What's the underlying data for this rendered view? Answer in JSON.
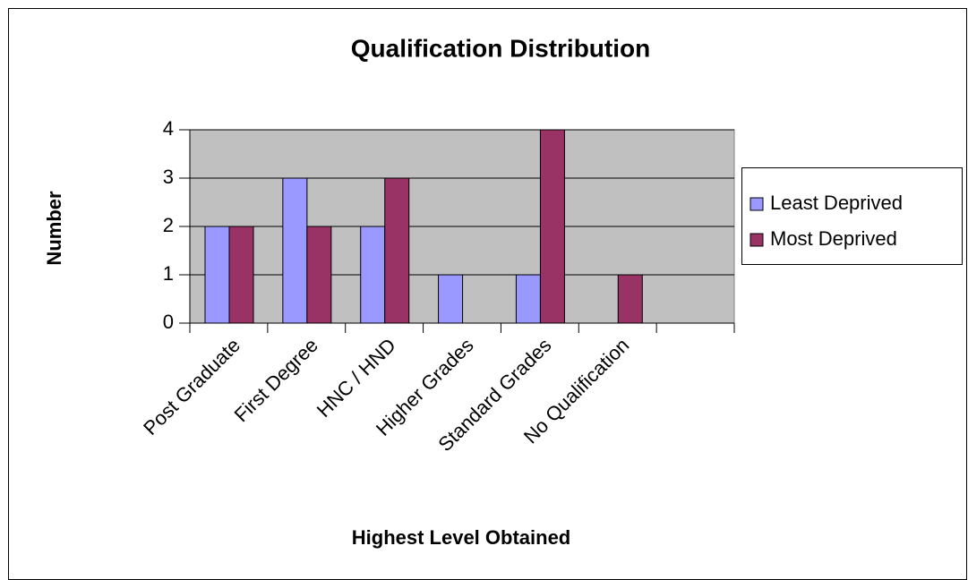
{
  "chart_data": {
    "type": "bar",
    "title": "Qualification Distribution",
    "x_label": "Highest Level Obtained",
    "y_label": "Number",
    "categories": [
      "Post Graduate",
      "First Degree",
      "HNC / HND",
      "Higher Grades",
      "Standard Grades",
      "No Qualification",
      null
    ],
    "series": [
      {
        "name": "Least Deprived",
        "color": "#9999ff",
        "values": [
          2,
          3,
          2,
          1,
          1,
          0,
          null
        ]
      },
      {
        "name": "Most Deprived",
        "color": "#993366",
        "values": [
          2,
          2,
          3,
          0,
          4,
          1,
          null
        ]
      }
    ],
    "ylim": [
      0,
      4
    ],
    "yticks": [
      0,
      1,
      2,
      3,
      4
    ],
    "grid": true,
    "legend": "right",
    "plot_background": "#c0c0c0"
  }
}
